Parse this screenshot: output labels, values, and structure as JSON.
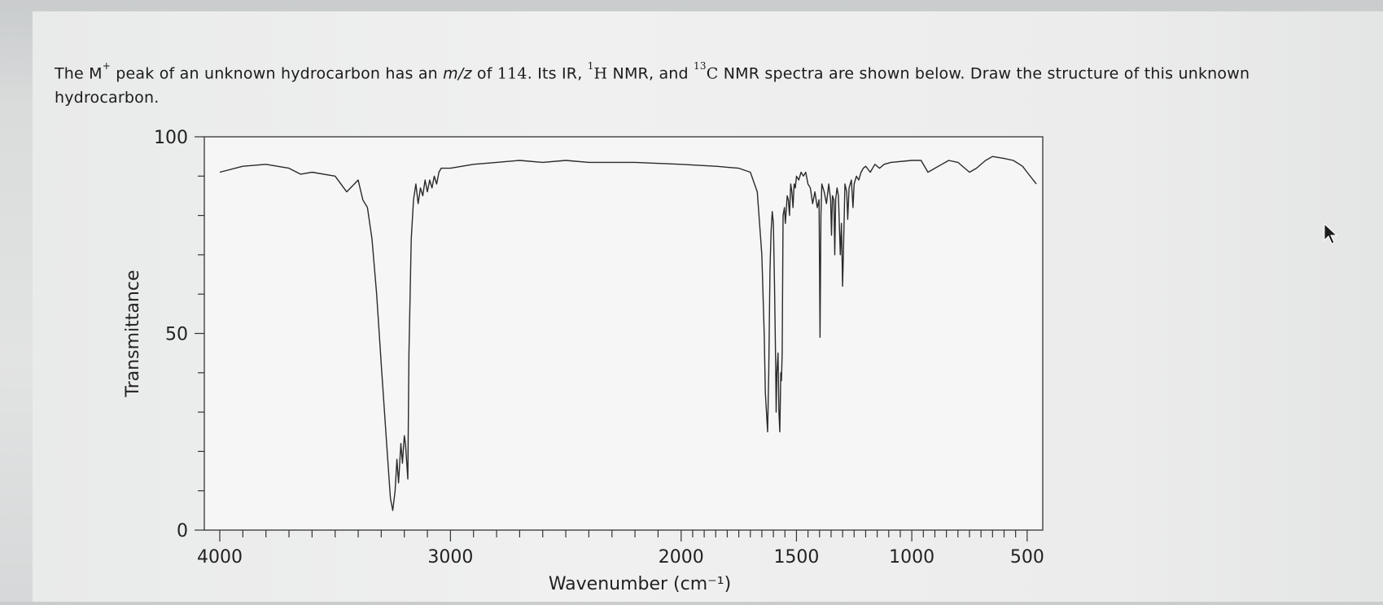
{
  "question": {
    "part1": "The M",
    "mplus_sup": "+",
    "part2": " peak of an unknown hydrocarbon has an ",
    "mz": "m/z",
    "part3": " of ",
    "mass": "114",
    "part4": ". Its IR, ",
    "h_sup": "1",
    "h_label": "H",
    "part5": " NMR, and ",
    "c_sup": "13",
    "c_label": "C",
    "part6": " NMR spectra are shown below. Draw the structure of this unknown hydrocarbon."
  },
  "chart_data": {
    "type": "line",
    "title": "",
    "xlabel": "Wavenumber (cm⁻¹)",
    "ylabel": "Transmittance",
    "xlim": [
      4000,
      450
    ],
    "ylim": [
      0,
      100
    ],
    "x_ticks": [
      4000,
      3000,
      2000,
      1500,
      1000,
      500
    ],
    "y_ticks": [
      0,
      50,
      100
    ],
    "grid": false,
    "series": [
      {
        "name": "",
        "color": "#2a2a2a",
        "points": [
          [
            4000,
            91
          ],
          [
            3900,
            92.5
          ],
          [
            3800,
            93
          ],
          [
            3700,
            92
          ],
          [
            3650,
            90.5
          ],
          [
            3600,
            91
          ],
          [
            3500,
            90
          ],
          [
            3450,
            86
          ],
          [
            3400,
            89
          ],
          [
            3380,
            84
          ],
          [
            3360,
            82
          ],
          [
            3340,
            74
          ],
          [
            3320,
            60
          ],
          [
            3300,
            42
          ],
          [
            3280,
            25
          ],
          [
            3265,
            12
          ],
          [
            3260,
            8
          ],
          [
            3250,
            5
          ],
          [
            3240,
            10
          ],
          [
            3232,
            18
          ],
          [
            3225,
            12
          ],
          [
            3215,
            22
          ],
          [
            3208,
            17
          ],
          [
            3200,
            24
          ],
          [
            3195,
            22
          ],
          [
            3185,
            13
          ],
          [
            3180,
            45
          ],
          [
            3170,
            74
          ],
          [
            3160,
            84
          ],
          [
            3150,
            88
          ],
          [
            3140,
            83
          ],
          [
            3130,
            87
          ],
          [
            3120,
            85
          ],
          [
            3110,
            89
          ],
          [
            3100,
            86
          ],
          [
            3090,
            89
          ],
          [
            3080,
            87
          ],
          [
            3070,
            90
          ],
          [
            3060,
            88
          ],
          [
            3050,
            91
          ],
          [
            3040,
            92
          ],
          [
            3000,
            92
          ],
          [
            2900,
            93
          ],
          [
            2800,
            93.5
          ],
          [
            2700,
            94
          ],
          [
            2600,
            93.5
          ],
          [
            2500,
            94
          ],
          [
            2400,
            93.5
          ],
          [
            2200,
            93.5
          ],
          [
            2000,
            93
          ],
          [
            1850,
            92.5
          ],
          [
            1750,
            92
          ],
          [
            1700,
            91
          ],
          [
            1670,
            86
          ],
          [
            1650,
            70
          ],
          [
            1640,
            50
          ],
          [
            1635,
            35
          ],
          [
            1630,
            30
          ],
          [
            1625,
            25
          ],
          [
            1620,
            40
          ],
          [
            1615,
            66
          ],
          [
            1610,
            76
          ],
          [
            1605,
            81
          ],
          [
            1600,
            78
          ],
          [
            1595,
            62
          ],
          [
            1590,
            42
          ],
          [
            1588,
            30
          ],
          [
            1585,
            40
          ],
          [
            1580,
            45
          ],
          [
            1576,
            30
          ],
          [
            1572,
            25
          ],
          [
            1568,
            40
          ],
          [
            1565,
            38
          ],
          [
            1562,
            45
          ],
          [
            1558,
            80
          ],
          [
            1552,
            82
          ],
          [
            1548,
            78
          ],
          [
            1540,
            85
          ],
          [
            1535,
            84
          ],
          [
            1530,
            80
          ],
          [
            1525,
            88
          ],
          [
            1520,
            86
          ],
          [
            1515,
            82
          ],
          [
            1510,
            88
          ],
          [
            1505,
            87
          ],
          [
            1500,
            90
          ],
          [
            1490,
            89
          ],
          [
            1480,
            91
          ],
          [
            1470,
            90
          ],
          [
            1460,
            91
          ],
          [
            1450,
            88
          ],
          [
            1440,
            87
          ],
          [
            1430,
            83
          ],
          [
            1420,
            86
          ],
          [
            1410,
            82
          ],
          [
            1402,
            84
          ],
          [
            1398,
            49
          ],
          [
            1394,
            80
          ],
          [
            1390,
            88
          ],
          [
            1380,
            86
          ],
          [
            1370,
            83
          ],
          [
            1360,
            88
          ],
          [
            1352,
            84
          ],
          [
            1348,
            75
          ],
          [
            1344,
            85
          ],
          [
            1338,
            84
          ],
          [
            1334,
            70
          ],
          [
            1330,
            84
          ],
          [
            1324,
            87
          ],
          [
            1318,
            85
          ],
          [
            1310,
            70
          ],
          [
            1305,
            78
          ],
          [
            1300,
            62
          ],
          [
            1296,
            72
          ],
          [
            1290,
            88
          ],
          [
            1282,
            86
          ],
          [
            1278,
            79
          ],
          [
            1272,
            87
          ],
          [
            1262,
            89
          ],
          [
            1255,
            82
          ],
          [
            1250,
            88
          ],
          [
            1240,
            90
          ],
          [
            1230,
            89
          ],
          [
            1220,
            91
          ],
          [
            1210,
            92
          ],
          [
            1200,
            92.5
          ],
          [
            1180,
            91
          ],
          [
            1160,
            93
          ],
          [
            1140,
            92
          ],
          [
            1120,
            93
          ],
          [
            1090,
            93.5
          ],
          [
            1000,
            94
          ],
          [
            960,
            94
          ],
          [
            930,
            91
          ],
          [
            900,
            92
          ],
          [
            870,
            93
          ],
          [
            840,
            94
          ],
          [
            800,
            93.5
          ],
          [
            750,
            91
          ],
          [
            720,
            92
          ],
          [
            680,
            94
          ],
          [
            650,
            95
          ],
          [
            600,
            94.5
          ],
          [
            560,
            94
          ],
          [
            520,
            92.5
          ],
          [
            500,
            91
          ],
          [
            460,
            88
          ]
        ]
      }
    ]
  }
}
